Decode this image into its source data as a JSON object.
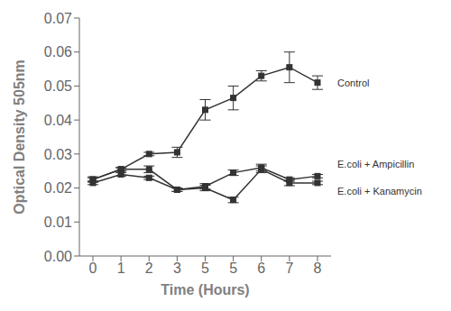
{
  "chart_data": {
    "type": "line",
    "xlabel": "Time (Hours)",
    "ylabel": "Optical Density 505nm",
    "categories": [
      "0",
      "1",
      "2",
      "3",
      "5",
      "5",
      "6",
      "7",
      "8"
    ],
    "series": [
      {
        "name": "Control",
        "color": "#333333",
        "marker": "square",
        "values": [
          0.0225,
          0.0255,
          0.03,
          0.0305,
          0.043,
          0.0465,
          0.053,
          0.0555,
          0.051
        ],
        "errors": [
          0.0005,
          0.0005,
          0.0005,
          0.0015,
          0.003,
          0.0035,
          0.0015,
          0.0045,
          0.002
        ]
      },
      {
        "name": "E.coli + Ampicillin",
        "color": "#333333",
        "marker": "square",
        "values": [
          0.0225,
          0.0255,
          0.0255,
          0.0195,
          0.0205,
          0.0245,
          0.026,
          0.0225,
          0.0235
        ],
        "errors": [
          0.0008,
          0.0005,
          0.001,
          0.0005,
          0.0008,
          0.0008,
          0.001,
          0.0005,
          0.0005
        ]
      },
      {
        "name": "E.coli + Kanamycin",
        "color": "#333333",
        "marker": "square",
        "values": [
          0.0215,
          0.024,
          0.023,
          0.0195,
          0.02,
          0.0165,
          0.0255,
          0.0215,
          0.0215
        ],
        "errors": [
          0.0005,
          0.0005,
          0.0005,
          0.0005,
          0.0008,
          0.0008,
          0.001,
          0.0008,
          0.0005
        ]
      }
    ],
    "ylim": [
      0.0,
      0.07
    ],
    "yticks": [
      {
        "value": 0.0,
        "label": "0.00"
      },
      {
        "value": 0.01,
        "label": "0.01"
      },
      {
        "value": 0.02,
        "label": "0.02"
      },
      {
        "value": 0.03,
        "label": "0.03"
      },
      {
        "value": 0.04,
        "label": "0.04"
      },
      {
        "value": 0.05,
        "label": "0.05"
      },
      {
        "value": 0.06,
        "label": "0.06"
      },
      {
        "value": 0.07,
        "label": "0.07"
      }
    ],
    "annotations": [
      {
        "text": "Control",
        "y": 0.051
      },
      {
        "text": "E.coli + Ampicillin",
        "y": 0.027
      },
      {
        "text": "E.coli + Kanamycin",
        "y": 0.019
      }
    ],
    "grid": false
  }
}
